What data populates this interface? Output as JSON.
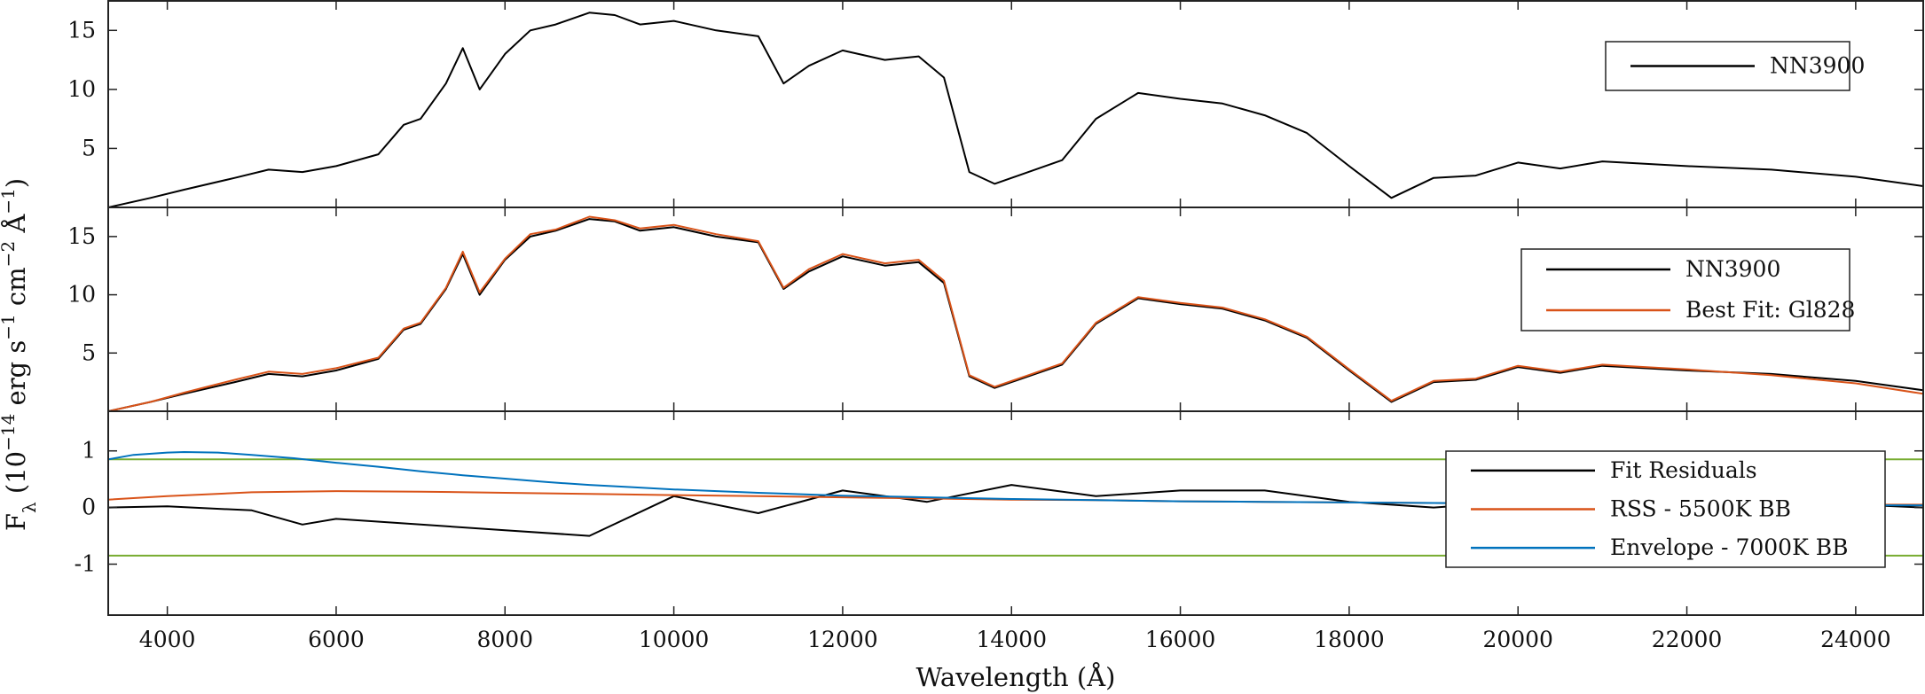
{
  "figure": {
    "xlabel": "Wavelength (Å)",
    "ylabel": "F_λ (10^-14 erg s^-1 cm^-2 Å^-1)"
  },
  "chart_data": [
    {
      "type": "line",
      "panel": "top",
      "xlim": [
        3300,
        24800
      ],
      "ylim": [
        0,
        17.5
      ],
      "x_ticks": [
        4000,
        6000,
        8000,
        10000,
        12000,
        14000,
        16000,
        18000,
        20000,
        22000,
        24000
      ],
      "y_ticks": [
        5,
        10,
        15
      ],
      "y_tick_labels": [
        "5",
        "10",
        "15"
      ],
      "grid": false,
      "legend": {
        "placement": "top-right",
        "entries": [
          "NN3900"
        ]
      },
      "series": [
        {
          "name": "NN3900",
          "color": "#000000",
          "x": [
            3300,
            3800,
            4200,
            4800,
            5200,
            5600,
            6000,
            6500,
            6800,
            7000,
            7300,
            7500,
            7700,
            8000,
            8300,
            8600,
            9000,
            9300,
            9600,
            10000,
            10500,
            11000,
            11300,
            11600,
            12000,
            12500,
            12900,
            13200,
            13500,
            13800,
            14200,
            14600,
            15000,
            15500,
            16000,
            16500,
            17000,
            17500,
            18000,
            18500,
            19000,
            19500,
            20000,
            20500,
            21000,
            21500,
            22000,
            23000,
            24000,
            24800
          ],
          "y": [
            0,
            0.8,
            1.5,
            2.5,
            3.2,
            3.0,
            3.5,
            4.5,
            7.0,
            7.5,
            10.5,
            13.5,
            10.0,
            13.0,
            15.0,
            15.5,
            16.5,
            16.3,
            15.5,
            15.8,
            15.0,
            14.5,
            10.5,
            12.0,
            13.3,
            12.5,
            12.8,
            11.0,
            3.0,
            2.0,
            3.0,
            4.0,
            7.5,
            9.7,
            9.2,
            8.8,
            7.8,
            6.3,
            3.5,
            0.8,
            2.5,
            2.7,
            3.8,
            3.3,
            3.9,
            3.7,
            3.5,
            3.2,
            2.6,
            1.8
          ]
        }
      ]
    },
    {
      "type": "line",
      "panel": "middle",
      "xlim": [
        3300,
        24800
      ],
      "ylim": [
        0,
        17.5
      ],
      "y_ticks": [
        5,
        10,
        15
      ],
      "y_tick_labels": [
        "5",
        "10",
        "15"
      ],
      "grid": false,
      "legend": {
        "placement": "top-right",
        "entries": [
          "NN3900",
          "Best Fit: Gl828"
        ]
      },
      "series": [
        {
          "name": "NN3900",
          "color": "#000000",
          "x": [
            3300,
            3800,
            4200,
            4800,
            5200,
            5600,
            6000,
            6500,
            6800,
            7000,
            7300,
            7500,
            7700,
            8000,
            8300,
            8600,
            9000,
            9300,
            9600,
            10000,
            10500,
            11000,
            11300,
            11600,
            12000,
            12500,
            12900,
            13200,
            13500,
            13800,
            14200,
            14600,
            15000,
            15500,
            16000,
            16500,
            17000,
            17500,
            18000,
            18500,
            19000,
            19500,
            20000,
            20500,
            21000,
            21500,
            22000,
            23000,
            24000,
            24800
          ],
          "y": [
            0,
            0.8,
            1.5,
            2.5,
            3.2,
            3.0,
            3.5,
            4.5,
            7.0,
            7.5,
            10.5,
            13.5,
            10.0,
            13.0,
            15.0,
            15.5,
            16.5,
            16.3,
            15.5,
            15.8,
            15.0,
            14.5,
            10.5,
            12.0,
            13.3,
            12.5,
            12.8,
            11.0,
            3.0,
            2.0,
            3.0,
            4.0,
            7.5,
            9.7,
            9.2,
            8.8,
            7.8,
            6.3,
            3.5,
            0.8,
            2.5,
            2.7,
            3.8,
            3.3,
            3.9,
            3.7,
            3.5,
            3.2,
            2.6,
            1.8
          ]
        },
        {
          "name": "Best Fit: Gl828",
          "color": "#D95319",
          "x": [
            3300,
            3800,
            4200,
            4800,
            5200,
            5600,
            6000,
            6500,
            6800,
            7000,
            7300,
            7500,
            7700,
            8000,
            8300,
            8600,
            9000,
            9300,
            9600,
            10000,
            10500,
            11000,
            11300,
            11600,
            12000,
            12500,
            12900,
            13200,
            13500,
            13800,
            14200,
            14600,
            15000,
            15500,
            16000,
            16500,
            17000,
            17500,
            18000,
            18500,
            19000,
            19500,
            20000,
            20500,
            21000,
            21500,
            22000,
            23000,
            24000,
            24800
          ],
          "y": [
            0,
            0.8,
            1.6,
            2.7,
            3.4,
            3.2,
            3.7,
            4.6,
            7.1,
            7.6,
            10.6,
            13.7,
            10.2,
            13.1,
            15.2,
            15.6,
            16.7,
            16.4,
            15.7,
            16.0,
            15.2,
            14.6,
            10.6,
            12.2,
            13.5,
            12.7,
            13.0,
            11.2,
            3.1,
            2.1,
            3.1,
            4.1,
            7.6,
            9.8,
            9.3,
            8.9,
            7.9,
            6.4,
            3.6,
            0.9,
            2.6,
            2.8,
            3.9,
            3.4,
            4.0,
            3.8,
            3.6,
            3.1,
            2.4,
            1.5
          ]
        }
      ]
    },
    {
      "type": "line",
      "panel": "bottom",
      "xlim": [
        3300,
        24800
      ],
      "ylim": [
        -1.9,
        1.7
      ],
      "y_ticks": [
        -1,
        0,
        1
      ],
      "y_tick_labels": [
        "-1",
        "0",
        "1"
      ],
      "hlines": [
        {
          "y": 0.85,
          "color": "#77AC30"
        },
        {
          "y": -0.85,
          "color": "#77AC30"
        }
      ],
      "grid": false,
      "legend": {
        "placement": "top-right",
        "entries": [
          "Fit Residuals",
          "RSS - 5500K BB",
          "Envelope - 7000K BB"
        ]
      },
      "series": [
        {
          "name": "Fit Residuals",
          "color": "#000000",
          "x": [
            3300,
            4000,
            5000,
            5600,
            6000,
            7000,
            8000,
            9000,
            10000,
            11000,
            12000,
            13000,
            14000,
            15000,
            16000,
            17000,
            18000,
            19000,
            20000,
            21000,
            22000,
            23000,
            24000,
            24800
          ],
          "y": [
            0,
            0.02,
            -0.05,
            -0.3,
            -0.2,
            -0.3,
            -0.4,
            -0.5,
            0.2,
            -0.1,
            0.3,
            0.1,
            0.4,
            0.2,
            0.3,
            0.3,
            0.1,
            0.0,
            0.1,
            0.0,
            0.05,
            0.0,
            0.05,
            0.0
          ]
        },
        {
          "name": "RSS - 5500K BB",
          "color": "#D95319",
          "x": [
            3300,
            4000,
            5000,
            6000,
            7000,
            8000,
            9000,
            10000,
            11000,
            12000,
            13000,
            14000,
            15000,
            16000,
            17000,
            18000,
            19000,
            20000,
            21000,
            22000,
            23000,
            24000,
            24800
          ],
          "y": [
            0.14,
            0.2,
            0.27,
            0.29,
            0.28,
            0.26,
            0.24,
            0.22,
            0.2,
            0.18,
            0.16,
            0.14,
            0.13,
            0.11,
            0.1,
            0.09,
            0.08,
            0.07,
            0.07,
            0.06,
            0.05,
            0.05,
            0.05
          ]
        },
        {
          "name": "Envelope - 7000K BB",
          "color": "#0072BD",
          "x": [
            3300,
            3600,
            4000,
            4200,
            4600,
            5000,
            5500,
            6000,
            6500,
            7000,
            7500,
            8000,
            8500,
            9000,
            9500,
            10000,
            11000,
            12000,
            13000,
            14000,
            15000,
            16000,
            17000,
            18000,
            19000,
            20000,
            21000,
            22000,
            23000,
            24000,
            24800
          ],
          "y": [
            0.85,
            0.93,
            0.97,
            0.98,
            0.97,
            0.93,
            0.87,
            0.79,
            0.72,
            0.64,
            0.57,
            0.51,
            0.45,
            0.4,
            0.36,
            0.32,
            0.26,
            0.21,
            0.18,
            0.15,
            0.13,
            0.11,
            0.1,
            0.09,
            0.08,
            0.07,
            0.06,
            0.05,
            0.05,
            0.04,
            0.04
          ]
        }
      ]
    }
  ]
}
